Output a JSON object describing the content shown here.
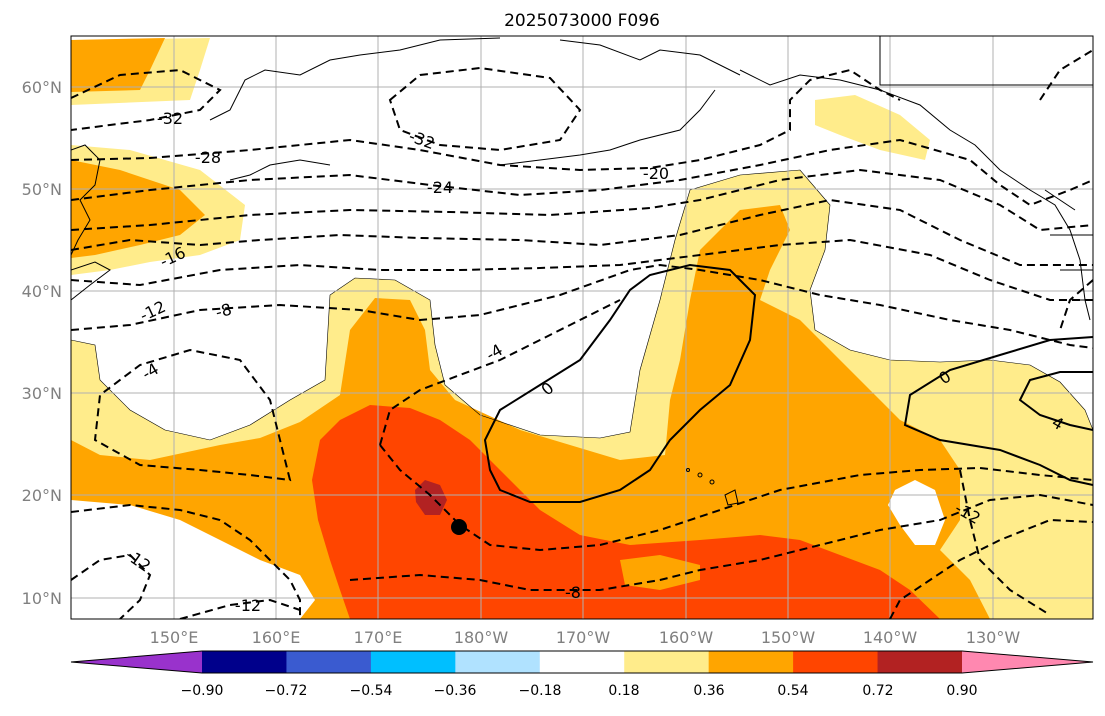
{
  "title": "2025073000 F096",
  "axes": {
    "lat_labels": [
      "60°N",
      "50°N",
      "40°N",
      "30°N",
      "20°N",
      "10°N"
    ],
    "lon_labels": [
      "150°E",
      "160°E",
      "170°E",
      "180°W",
      "170°W",
      "160°W",
      "150°W",
      "140°W",
      "130°W"
    ]
  },
  "colorbar": {
    "colors": [
      "#9932cc",
      "#00008b",
      "#3a5bd0",
      "#00bfff",
      "#b0e2ff",
      "#ffffff",
      "#ffec8b",
      "#ffa500",
      "#ff4500",
      "#b22222",
      "#ff88b0"
    ],
    "tick_labels": [
      "−0.90",
      "−0.72",
      "−0.54",
      "−0.36",
      "−0.18",
      "0.18",
      "0.36",
      "0.54",
      "0.72",
      "0.90"
    ]
  },
  "contour_labels": [
    {
      "text": "-32"
    },
    {
      "text": "-32"
    },
    {
      "text": "-28"
    },
    {
      "text": "-24"
    },
    {
      "text": "-20"
    },
    {
      "text": "-16"
    },
    {
      "text": "-12"
    },
    {
      "text": "-8"
    },
    {
      "text": "-4"
    },
    {
      "text": "-4"
    },
    {
      "text": "0"
    },
    {
      "text": "0"
    },
    {
      "text": "4"
    },
    {
      "text": "-12"
    },
    {
      "text": "-12"
    },
    {
      "text": "-12"
    },
    {
      "text": "-8"
    }
  ],
  "storm_marker": {
    "lat": 17,
    "lon": 182
  }
}
